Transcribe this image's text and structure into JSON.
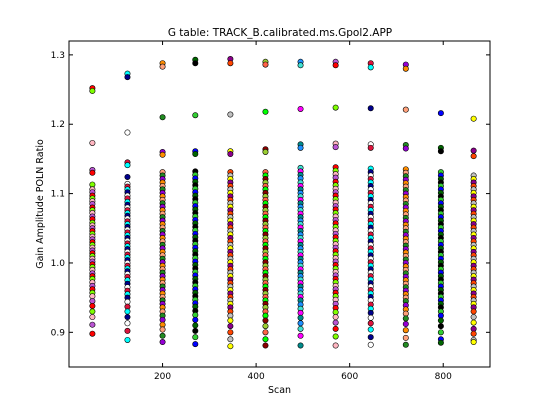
{
  "chart_data": {
    "type": "scatter",
    "title": "G table: TRACK_B.calibrated.ms.Gpol2.APP",
    "xlabel": "Scan",
    "ylabel": "Gain Amplitude POLN Ratio",
    "xlim": [
      0,
      900
    ],
    "ylim": [
      0.85,
      1.32
    ],
    "xticks": [
      200,
      400,
      600,
      800
    ],
    "yticks": [
      0.9,
      1.0,
      1.1,
      1.2,
      1.3
    ],
    "xtick_labels": [
      "200",
      "400",
      "600",
      "800"
    ],
    "ytick_labels": [
      "0.9",
      "1.0",
      "1.1",
      "1.2",
      "1.3"
    ],
    "grid": false,
    "legend": "none",
    "point_colors": [
      "#ff0000",
      "#00ff00",
      "#0000ff",
      "#00ffff",
      "#ff00ff",
      "#ffff00",
      "#ff8c00",
      "#7fff00",
      "#8b0000",
      "#006400",
      "#00008b",
      "#008b8b",
      "#8b008b",
      "#ffa07a",
      "#ffb6c1",
      "#9acd32",
      "#000000",
      "#ffffff",
      "#1e90ff",
      "#ff4500",
      "#228b22",
      "#ba55d3",
      "#ff6347",
      "#32cd32",
      "#dc143c",
      "#40e0d0",
      "#c0c0c0",
      "#9400d3"
    ],
    "scans": [
      {
        "x": 50,
        "values": [
          1.252,
          1.248,
          1.173,
          1.134,
          1.13,
          1.113,
          1.106,
          1.102,
          1.097,
          1.093,
          1.089,
          1.085,
          1.08,
          1.076,
          1.072,
          1.067,
          1.063,
          1.058,
          1.054,
          1.05,
          1.046,
          1.042,
          1.038,
          1.034,
          1.03,
          1.026,
          1.022,
          1.018,
          1.014,
          1.01,
          1.006,
          1.002,
          0.998,
          0.994,
          0.99,
          0.985,
          0.981,
          0.977,
          0.972,
          0.967,
          0.962,
          0.957,
          0.952,
          0.945,
          0.938,
          0.93,
          0.922,
          0.911,
          0.898
        ]
      },
      {
        "x": 125,
        "values": [
          1.273,
          1.268,
          1.188,
          1.145,
          1.141,
          1.124,
          1.114,
          1.11,
          1.106,
          1.102,
          1.097,
          1.093,
          1.088,
          1.084,
          1.08,
          1.076,
          1.072,
          1.068,
          1.064,
          1.06,
          1.056,
          1.052,
          1.048,
          1.044,
          1.04,
          1.036,
          1.032,
          1.028,
          1.024,
          1.02,
          1.016,
          1.012,
          1.008,
          1.004,
          1.0,
          0.996,
          0.992,
          0.988,
          0.984,
          0.98,
          0.975,
          0.97,
          0.965,
          0.96,
          0.955,
          0.95,
          0.944,
          0.937,
          0.93,
          0.922,
          0.913,
          0.902,
          0.889
        ]
      },
      {
        "x": 200,
        "values": [
          1.288,
          1.283,
          1.21,
          1.16,
          1.156,
          1.131,
          1.126,
          1.121,
          1.116,
          1.111,
          1.106,
          1.101,
          1.096,
          1.091,
          1.086,
          1.081,
          1.076,
          1.071,
          1.066,
          1.061,
          1.056,
          1.051,
          1.046,
          1.041,
          1.036,
          1.031,
          1.026,
          1.021,
          1.016,
          1.011,
          1.006,
          1.001,
          0.996,
          0.991,
          0.986,
          0.981,
          0.976,
          0.971,
          0.966,
          0.961,
          0.956,
          0.951,
          0.946,
          0.941,
          0.936,
          0.93,
          0.924,
          0.918,
          0.911,
          0.904,
          0.895,
          0.886
        ]
      },
      {
        "x": 270,
        "values": [
          1.293,
          1.288,
          1.213,
          1.161,
          1.157,
          1.132,
          1.127,
          1.122,
          1.117,
          1.112,
          1.107,
          1.102,
          1.097,
          1.092,
          1.087,
          1.082,
          1.077,
          1.072,
          1.067,
          1.062,
          1.057,
          1.052,
          1.047,
          1.042,
          1.037,
          1.032,
          1.027,
          1.022,
          1.017,
          1.012,
          1.007,
          1.002,
          0.997,
          0.992,
          0.987,
          0.982,
          0.977,
          0.972,
          0.967,
          0.962,
          0.957,
          0.952,
          0.947,
          0.942,
          0.937,
          0.931,
          0.925,
          0.918,
          0.91,
          0.902,
          0.893,
          0.883
        ]
      },
      {
        "x": 345,
        "values": [
          1.294,
          1.288,
          1.214,
          1.161,
          1.157,
          1.131,
          1.126,
          1.121,
          1.116,
          1.111,
          1.106,
          1.101,
          1.096,
          1.091,
          1.086,
          1.081,
          1.076,
          1.071,
          1.066,
          1.061,
          1.056,
          1.051,
          1.046,
          1.041,
          1.036,
          1.031,
          1.026,
          1.021,
          1.016,
          1.011,
          1.006,
          1.001,
          0.996,
          0.991,
          0.986,
          0.981,
          0.976,
          0.971,
          0.966,
          0.961,
          0.956,
          0.951,
          0.946,
          0.941,
          0.936,
          0.93,
          0.924,
          0.917,
          0.909,
          0.9,
          0.89,
          0.88
        ]
      },
      {
        "x": 420,
        "values": [
          1.29,
          1.286,
          1.218,
          1.164,
          1.16,
          1.131,
          1.126,
          1.121,
          1.116,
          1.111,
          1.106,
          1.101,
          1.096,
          1.091,
          1.086,
          1.081,
          1.076,
          1.071,
          1.066,
          1.061,
          1.056,
          1.051,
          1.046,
          1.041,
          1.036,
          1.031,
          1.026,
          1.021,
          1.016,
          1.011,
          1.006,
          1.001,
          0.996,
          0.991,
          0.986,
          0.981,
          0.976,
          0.971,
          0.966,
          0.961,
          0.956,
          0.951,
          0.946,
          0.941,
          0.936,
          0.93,
          0.924,
          0.917,
          0.909,
          0.9,
          0.89,
          0.881
        ]
      },
      {
        "x": 495,
        "values": [
          1.29,
          1.285,
          1.222,
          1.171,
          1.166,
          1.137,
          1.132,
          1.127,
          1.122,
          1.116,
          1.111,
          1.106,
          1.101,
          1.096,
          1.091,
          1.086,
          1.081,
          1.076,
          1.071,
          1.066,
          1.061,
          1.056,
          1.051,
          1.046,
          1.041,
          1.036,
          1.031,
          1.026,
          1.021,
          1.016,
          1.011,
          1.006,
          1.001,
          0.996,
          0.991,
          0.986,
          0.981,
          0.976,
          0.971,
          0.966,
          0.961,
          0.956,
          0.951,
          0.946,
          0.94,
          0.934,
          0.928,
          0.921,
          0.913,
          0.905,
          0.895,
          0.881
        ]
      },
      {
        "x": 570,
        "values": [
          1.29,
          1.285,
          1.224,
          1.172,
          1.167,
          1.138,
          1.133,
          1.128,
          1.123,
          1.117,
          1.112,
          1.107,
          1.102,
          1.097,
          1.092,
          1.087,
          1.082,
          1.077,
          1.072,
          1.067,
          1.062,
          1.057,
          1.052,
          1.047,
          1.042,
          1.037,
          1.032,
          1.027,
          1.022,
          1.017,
          1.012,
          1.007,
          1.002,
          0.997,
          0.992,
          0.987,
          0.982,
          0.977,
          0.972,
          0.967,
          0.962,
          0.957,
          0.952,
          0.947,
          0.941,
          0.935,
          0.929,
          0.922,
          0.914,
          0.905,
          0.894,
          0.881
        ]
      },
      {
        "x": 645,
        "values": [
          1.288,
          1.282,
          1.223,
          1.171,
          1.166,
          1.136,
          1.131,
          1.126,
          1.121,
          1.116,
          1.111,
          1.106,
          1.101,
          1.096,
          1.091,
          1.086,
          1.081,
          1.076,
          1.071,
          1.066,
          1.061,
          1.056,
          1.051,
          1.046,
          1.041,
          1.036,
          1.031,
          1.026,
          1.021,
          1.016,
          1.011,
          1.006,
          1.001,
          0.996,
          0.991,
          0.986,
          0.981,
          0.976,
          0.971,
          0.966,
          0.961,
          0.956,
          0.951,
          0.946,
          0.94,
          0.934,
          0.928,
          0.921,
          0.913,
          0.904,
          0.893,
          0.882
        ]
      },
      {
        "x": 720,
        "values": [
          1.286,
          1.28,
          1.221,
          1.17,
          1.165,
          1.135,
          1.13,
          1.125,
          1.12,
          1.115,
          1.11,
          1.105,
          1.1,
          1.095,
          1.09,
          1.085,
          1.08,
          1.075,
          1.07,
          1.065,
          1.06,
          1.055,
          1.05,
          1.045,
          1.04,
          1.035,
          1.03,
          1.025,
          1.02,
          1.015,
          1.01,
          1.005,
          1.0,
          0.995,
          0.99,
          0.985,
          0.98,
          0.975,
          0.97,
          0.965,
          0.96,
          0.955,
          0.95,
          0.945,
          0.939,
          0.933,
          0.927,
          0.92,
          0.912,
          0.903,
          0.892,
          0.882
        ]
      },
      {
        "x": 795,
        "values": [
          1.216,
          1.166,
          1.161,
          1.131,
          1.126,
          1.121,
          1.116,
          1.111,
          1.106,
          1.101,
          1.096,
          1.091,
          1.086,
          1.081,
          1.076,
          1.071,
          1.066,
          1.061,
          1.056,
          1.051,
          1.046,
          1.041,
          1.036,
          1.031,
          1.026,
          1.021,
          1.016,
          1.011,
          1.006,
          1.001,
          0.996,
          0.991,
          0.986,
          0.981,
          0.976,
          0.971,
          0.966,
          0.961,
          0.956,
          0.951,
          0.946,
          0.941,
          0.936,
          0.93,
          0.924,
          0.917,
          0.909,
          0.9,
          0.89,
          0.885
        ]
      },
      {
        "x": 865,
        "values": [
          1.208,
          1.162,
          1.154,
          1.126,
          1.121,
          1.116,
          1.111,
          1.106,
          1.101,
          1.096,
          1.091,
          1.086,
          1.081,
          1.076,
          1.071,
          1.066,
          1.061,
          1.056,
          1.051,
          1.046,
          1.041,
          1.036,
          1.031,
          1.026,
          1.021,
          1.016,
          1.011,
          1.006,
          1.001,
          0.996,
          0.991,
          0.986,
          0.981,
          0.976,
          0.971,
          0.966,
          0.961,
          0.956,
          0.951,
          0.946,
          0.941,
          0.936,
          0.93,
          0.922,
          0.914,
          0.905,
          0.898,
          0.889,
          0.886
        ]
      }
    ]
  }
}
